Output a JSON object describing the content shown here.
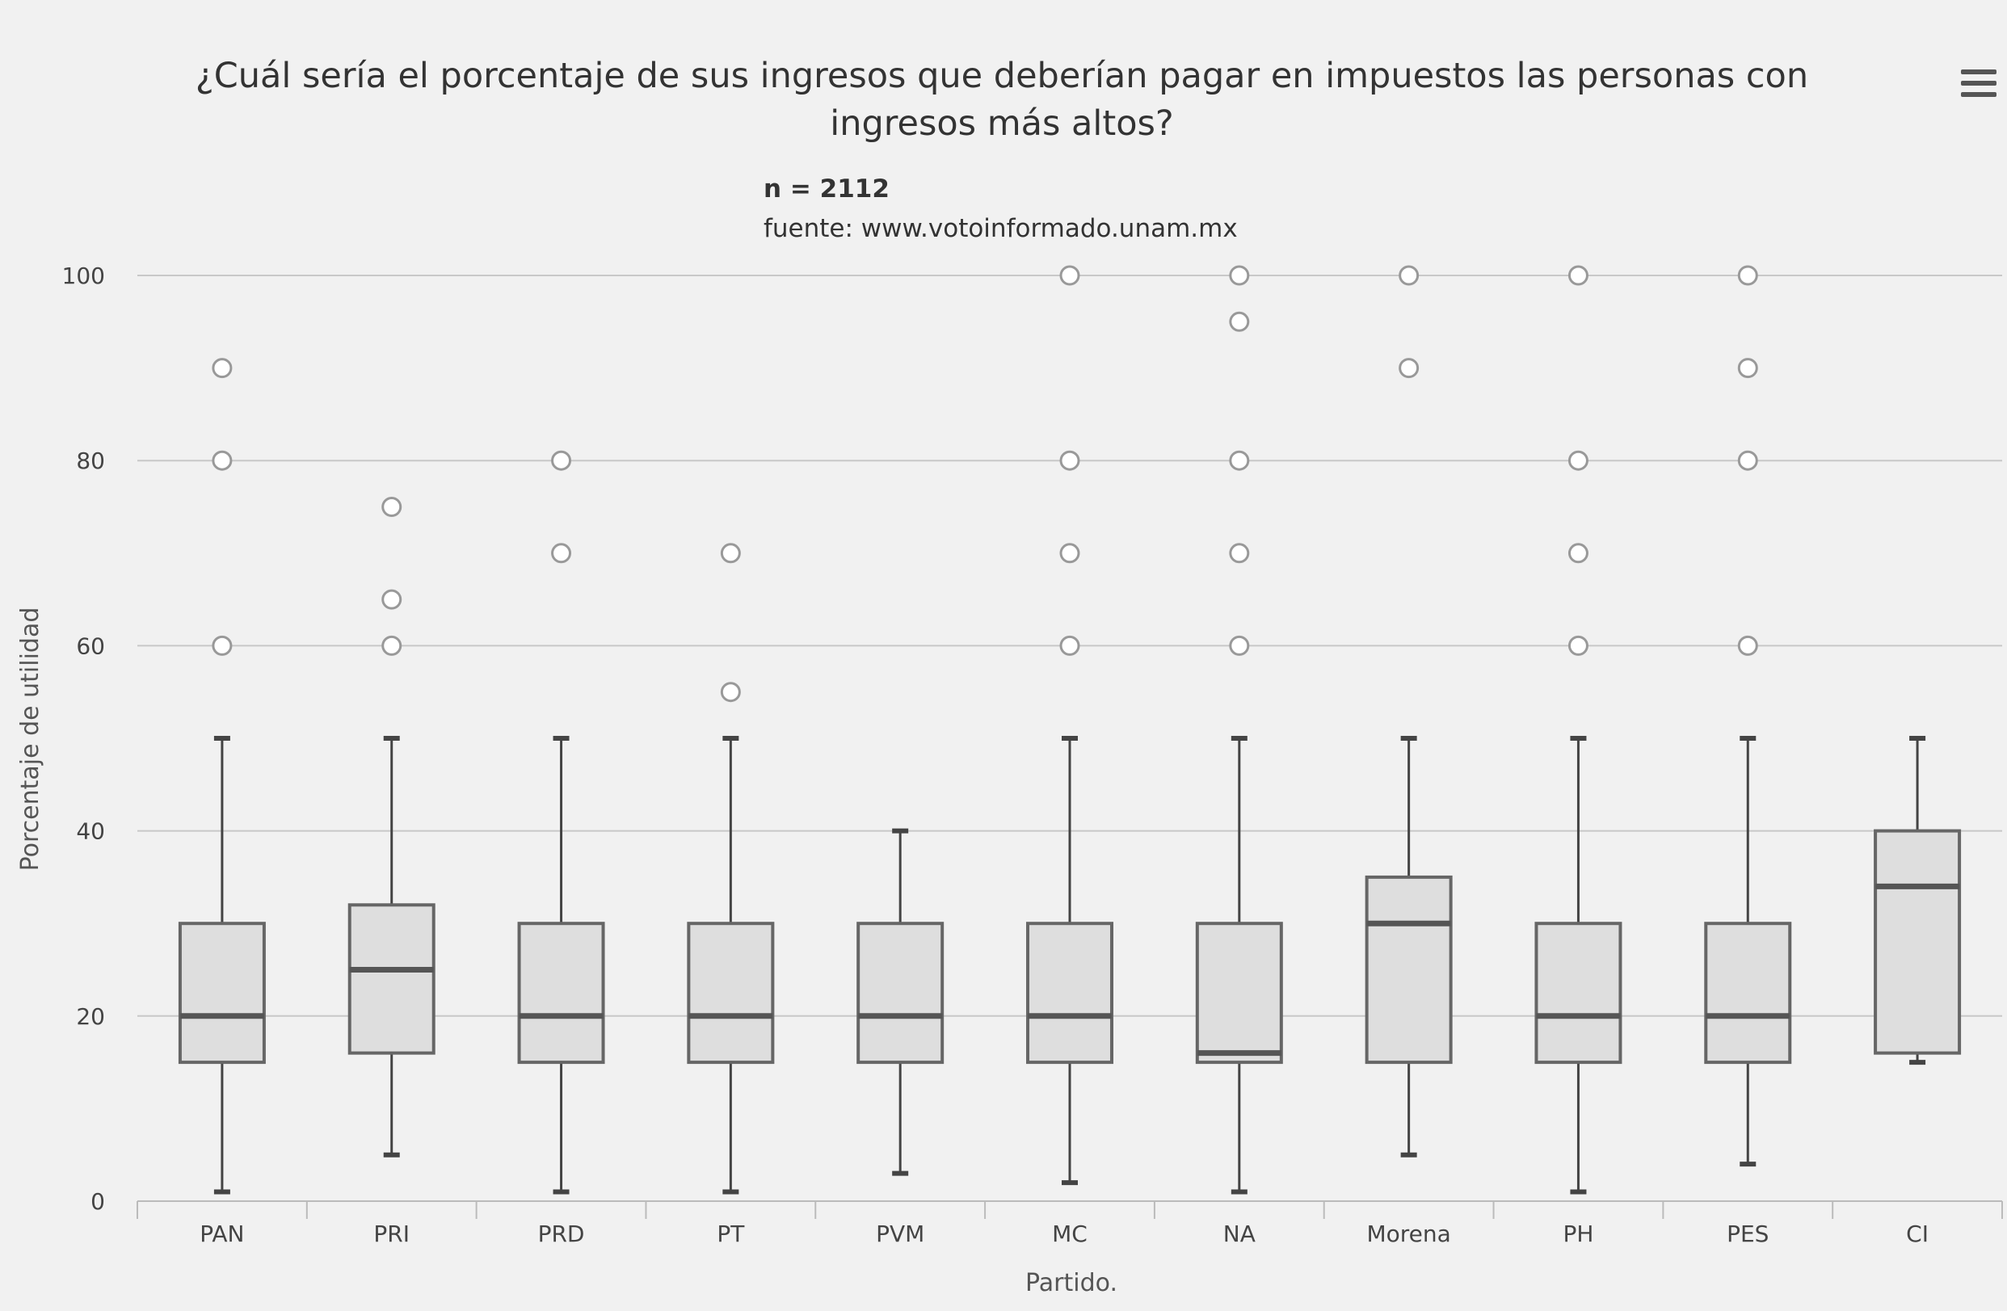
{
  "chart_data": {
    "type": "boxplot",
    "title": "¿Cuál sería el porcentaje de sus ingresos que deberían pagar en impuestos las personas con ingresos más altos?",
    "title_lines": [
      "¿Cuál sería el porcentaje de sus ingresos que deberían pagar en impuestos las personas con",
      "ingresos más altos?"
    ],
    "subtitle_n": "n = 2112",
    "subtitle_source": "fuente: www.votoinformado.unam.mx",
    "xlabel": "Partido.",
    "ylabel": "Porcentaje de utilidad",
    "ylim": [
      0,
      100
    ],
    "yticks": [
      0,
      20,
      40,
      60,
      80,
      100
    ],
    "grid": true,
    "categories": [
      "PAN",
      "PRI",
      "PRD",
      "PT",
      "PVM",
      "MC",
      "NA",
      "Morena",
      "PH",
      "PES",
      "CI"
    ],
    "boxes": [
      {
        "low": 1,
        "q1": 15,
        "median": 20,
        "q3": 30,
        "high": 50
      },
      {
        "low": 5,
        "q1": 16,
        "median": 25,
        "q3": 32,
        "high": 50
      },
      {
        "low": 1,
        "q1": 15,
        "median": 20,
        "q3": 30,
        "high": 50
      },
      {
        "low": 1,
        "q1": 15,
        "median": 20,
        "q3": 30,
        "high": 50
      },
      {
        "low": 3,
        "q1": 15,
        "median": 20,
        "q3": 30,
        "high": 40
      },
      {
        "low": 2,
        "q1": 15,
        "median": 20,
        "q3": 30,
        "high": 50
      },
      {
        "low": 1,
        "q1": 15,
        "median": 16,
        "q3": 30,
        "high": 50
      },
      {
        "low": 5,
        "q1": 15,
        "median": 30,
        "q3": 35,
        "high": 50
      },
      {
        "low": 1,
        "q1": 15,
        "median": 20,
        "q3": 30,
        "high": 50
      },
      {
        "low": 4,
        "q1": 15,
        "median": 20,
        "q3": 30,
        "high": 50
      },
      {
        "low": 15,
        "q1": 16,
        "median": 34,
        "q3": 40,
        "high": 50
      }
    ],
    "outliers": [
      {
        "category": "PAN",
        "values": [
          60,
          80,
          90
        ]
      },
      {
        "category": "PRI",
        "values": [
          60,
          65,
          75
        ]
      },
      {
        "category": "PRD",
        "values": [
          70,
          80
        ]
      },
      {
        "category": "PT",
        "values": [
          55,
          70
        ]
      },
      {
        "category": "MC",
        "values": [
          60,
          70,
          80,
          100
        ]
      },
      {
        "category": "NA",
        "values": [
          60,
          70,
          80,
          95,
          100
        ]
      },
      {
        "category": "Morena",
        "values": [
          90,
          100
        ]
      },
      {
        "category": "PH",
        "values": [
          60,
          70,
          80,
          100
        ]
      },
      {
        "category": "PES",
        "values": [
          60,
          80,
          90,
          100
        ]
      }
    ],
    "colors": {
      "box_fill": "#dedede",
      "box_stroke": "#666666",
      "median": "#555555",
      "outlier_stroke": "#999999",
      "gridline": "#c8c8c8",
      "background": "#f1f1f1"
    }
  },
  "menu_icon": "hamburger-menu-icon"
}
